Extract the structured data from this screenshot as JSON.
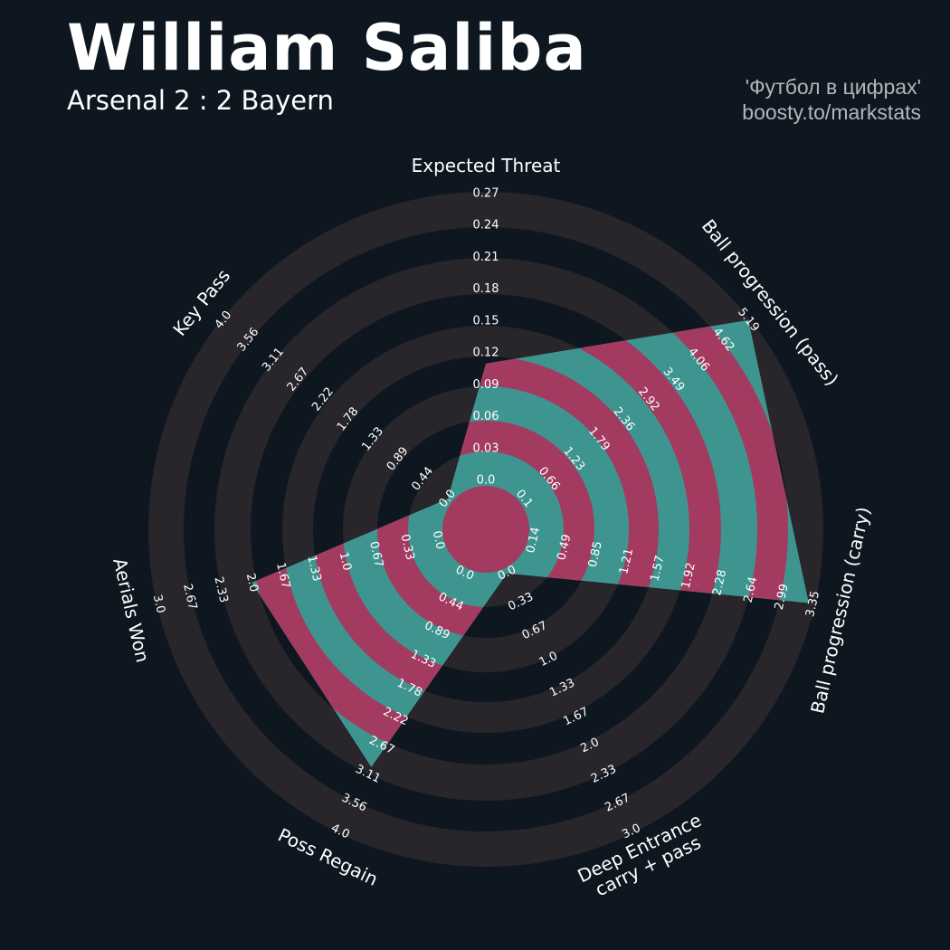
{
  "header": {
    "title": "William Saliba",
    "subtitle": "Arsenal 2 : 2 Bayern",
    "credit_line1": "'Футбол в цифрах'",
    "credit_line2": "boosty.to/markstats"
  },
  "chart_data": {
    "type": "radar",
    "title": "William Saliba",
    "subtitle": "Arsenal 2 : 2 Bayern",
    "colors": {
      "background": "#0e1720",
      "ring": "#28252b",
      "radar": "#3e9590",
      "radar_rings": "#a33a60"
    },
    "params": [
      {
        "label": [
          "Expected Threat"
        ],
        "min": 0.0,
        "max": 0.27,
        "value": 0.11,
        "ticks": [
          "0.0",
          "0.03",
          "0.06",
          "0.09",
          "0.12",
          "0.15",
          "0.18",
          "0.21",
          "0.24",
          "0.27"
        ]
      },
      {
        "label": [
          "Ball progression (pass)"
        ],
        "min": 0.1,
        "max": 5.19,
        "value": 5.19,
        "ticks": [
          "0.1",
          "0.66",
          "1.23",
          "1.79",
          "2.36",
          "2.92",
          "3.49",
          "4.06",
          "4.62",
          "5.19"
        ]
      },
      {
        "label": [
          "Ball progression (carry)"
        ],
        "min": 0.14,
        "max": 3.35,
        "value": 3.3,
        "ticks": [
          "0.14",
          "0.49",
          "0.85",
          "1.21",
          "1.57",
          "1.92",
          "2.28",
          "2.64",
          "2.99",
          "3.35"
        ]
      },
      {
        "label": [
          "Deep Entrance",
          "carry + pass"
        ],
        "min": 0.0,
        "max": 3.0,
        "value": 0.0,
        "ticks": [
          "0.0",
          "0.33",
          "0.67",
          "1.0",
          "1.33",
          "1.67",
          "2.0",
          "2.33",
          "2.67",
          "3.0"
        ]
      },
      {
        "label": [
          "Poss Regain"
        ],
        "min": 0.0,
        "max": 4.0,
        "value": 3.0,
        "ticks": [
          "0.0",
          "0.44",
          "0.89",
          "1.33",
          "1.78",
          "2.22",
          "2.67",
          "3.11",
          "3.56",
          "4.0"
        ]
      },
      {
        "label": [
          "Aerials Won"
        ],
        "min": 0.0,
        "max": 3.0,
        "value": 2.0,
        "ticks": [
          "0.0",
          "0.33",
          "0.67",
          "1.0",
          "1.33",
          "1.67",
          "2.0",
          "2.33",
          "2.67",
          "3.0"
        ]
      },
      {
        "label": [
          "Key Pass"
        ],
        "min": 0.0,
        "max": 4.0,
        "value": 0.0,
        "ticks": [
          "0.0",
          "0.44",
          "0.89",
          "1.33",
          "1.78",
          "2.22",
          "2.67",
          "3.11",
          "3.56",
          "4.0"
        ]
      }
    ]
  }
}
